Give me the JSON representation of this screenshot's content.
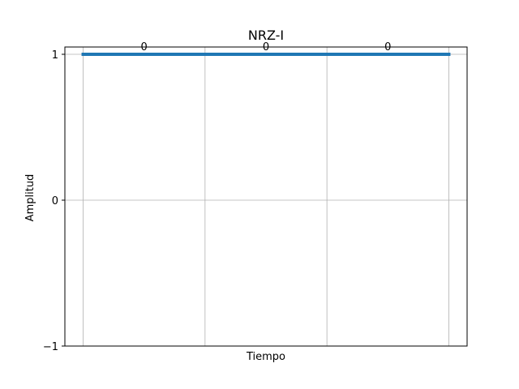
{
  "chart_data": {
    "type": "line",
    "step": "post",
    "title": "NRZ-I",
    "xlabel": "Tiempo",
    "ylabel": "Amplitud",
    "xlim": [
      -0.15,
      3.15
    ],
    "ylim": [
      -1,
      1.05
    ],
    "x_ticks_shown": false,
    "y_ticks": [
      -1,
      0,
      1
    ],
    "y_tick_labels": [
      "−1",
      "0",
      "1"
    ],
    "grid": true,
    "vertical_gridlines": [
      0,
      1,
      2,
      3
    ],
    "series": [
      {
        "x": [
          0,
          1,
          2,
          3
        ],
        "values": [
          1,
          1,
          1,
          1
        ],
        "color": "#1f77b4"
      }
    ],
    "bits": [
      {
        "label": "0",
        "x": 0.5,
        "y": 1
      },
      {
        "label": "0",
        "x": 1.5,
        "y": 1
      },
      {
        "label": "0",
        "x": 2.5,
        "y": 1
      }
    ],
    "colors": {
      "line": "#1f77b4",
      "grid": "#b0b0b0",
      "axes": "#000000"
    }
  }
}
